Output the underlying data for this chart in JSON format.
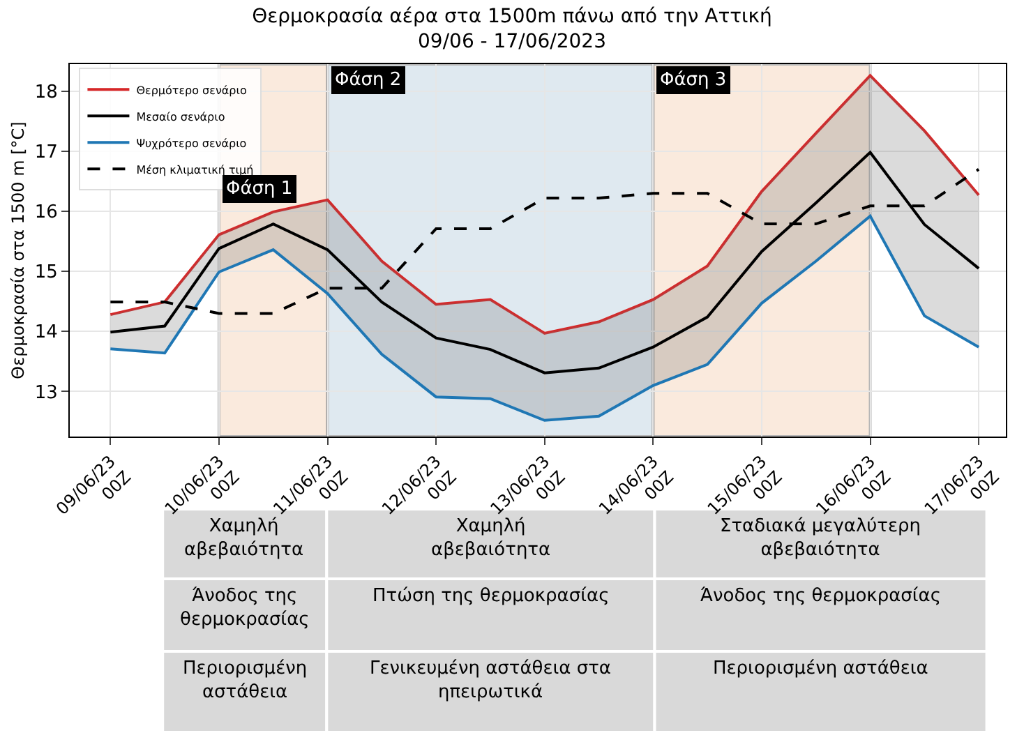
{
  "chart_data": {
    "type": "line",
    "title": "Θερμοκρασία αέρα στα 1500m πάνω από την Αττική",
    "subtitle": "09/06 - 17/06/2023",
    "ylabel": "Θερμοκρασία στα 1500 m [°C]",
    "x": [
      "2023-06-09T00:00",
      "2023-06-09T12:00",
      "2023-06-10T00:00",
      "2023-06-10T12:00",
      "2023-06-11T00:00",
      "2023-06-11T12:00",
      "2023-06-12T00:00",
      "2023-06-12T12:00",
      "2023-06-13T00:00",
      "2023-06-13T12:00",
      "2023-06-14T00:00",
      "2023-06-14T12:00",
      "2023-06-15T00:00",
      "2023-06-15T12:00",
      "2023-06-16T00:00",
      "2023-06-16T12:00",
      "2023-06-17T00:00"
    ],
    "series": [
      {
        "name": "Θερμότερο σενάριο",
        "color": "#d62728",
        "values": [
          14.28,
          14.49,
          15.61,
          15.99,
          16.19,
          15.17,
          14.45,
          14.53,
          13.97,
          14.16,
          14.53,
          15.09,
          16.33,
          17.3,
          18.26,
          17.34,
          16.27
        ]
      },
      {
        "name": "Μεσαίο σενάριο",
        "color": "#000000",
        "values": [
          13.99,
          14.09,
          15.38,
          15.79,
          15.36,
          14.49,
          13.89,
          13.7,
          13.31,
          13.39,
          13.74,
          14.24,
          15.33,
          16.14,
          16.98,
          15.78,
          15.05
        ],
        "lower": [
          13.71,
          13.64,
          14.99,
          15.36,
          14.63,
          13.62,
          12.91,
          12.88,
          12.52,
          12.59,
          13.1,
          13.45,
          14.47,
          15.17,
          15.92,
          14.26,
          13.74
        ],
        "upper": [
          14.28,
          14.49,
          15.61,
          15.99,
          16.19,
          15.17,
          14.45,
          14.53,
          13.97,
          14.16,
          14.53,
          15.09,
          16.33,
          17.3,
          18.26,
          17.34,
          16.27
        ]
      },
      {
        "name": "Ψυχρότερο σενάριο",
        "color": "#1f77b4",
        "values": [
          13.71,
          13.64,
          14.99,
          15.36,
          14.63,
          13.62,
          12.91,
          12.88,
          12.52,
          12.59,
          13.1,
          13.45,
          14.47,
          15.17,
          15.92,
          14.26,
          13.74
        ]
      },
      {
        "name": "Μέση κλιματική τιμή",
        "color": "#000000",
        "line_style": "dashed",
        "values": [
          14.49,
          14.49,
          14.3,
          14.3,
          14.72,
          14.72,
          15.71,
          15.71,
          16.22,
          16.22,
          16.3,
          16.3,
          15.79,
          15.79,
          16.09,
          16.09,
          16.7
        ]
      }
    ],
    "xlim": [
      "2023-06-08T15:00",
      "2023-06-17T06:00"
    ],
    "xticks": [
      {
        "value": "2023-06-09T00:00",
        "label": "09/06/23\n00Z"
      },
      {
        "value": "2023-06-10T00:00",
        "label": "10/06/23\n00Z"
      },
      {
        "value": "2023-06-11T00:00",
        "label": "11/06/23\n00Z"
      },
      {
        "value": "2023-06-12T00:00",
        "label": "12/06/23\n00Z"
      },
      {
        "value": "2023-06-13T00:00",
        "label": "13/06/23\n00Z"
      },
      {
        "value": "2023-06-14T00:00",
        "label": "14/06/23\n00Z"
      },
      {
        "value": "2023-06-15T00:00",
        "label": "15/06/23\n00Z"
      },
      {
        "value": "2023-06-16T00:00",
        "label": "16/06/23\n00Z"
      },
      {
        "value": "2023-06-17T00:00",
        "label": "17/06/23\n00Z"
      }
    ],
    "ylim": [
      12.25,
      18.45
    ],
    "yticks": [
      13,
      14,
      15,
      16,
      17,
      18
    ],
    "bands": [
      {
        "axis": "x",
        "from": "2023-06-10T00:00",
        "to": "2023-06-11T00:00",
        "label": "Φάση 1",
        "color": "#f9e2cf"
      },
      {
        "axis": "x",
        "from": "2023-06-11T00:00",
        "to": "2023-06-14T00:00",
        "label": "Φάση 2",
        "color": "#d2e1ea"
      },
      {
        "axis": "x",
        "from": "2023-06-14T00:00",
        "to": "2023-06-16T00:00",
        "label": "Φάση 3",
        "color": "#f9e2cf"
      }
    ],
    "annotations": [
      "Χαμηλή\nαβεβαιότητα",
      "Χαμηλή\nαβεβαιότητα",
      "Σταδιακά μεγαλύτερη\nαβεβαιότητα",
      "Άνοδος της\nθερμοκρασίας",
      "Πτώση της θερμοκρασίας",
      "Άνοδος της θερμοκρασίας",
      "Περιορισμένη\nαστάθεια",
      "Γενικευμένη αστάθεια στα\nηπειρωτικά",
      "Περιορισμένη αστάθεια"
    ],
    "grid": true,
    "legend": "top left",
    "marker": "none"
  }
}
